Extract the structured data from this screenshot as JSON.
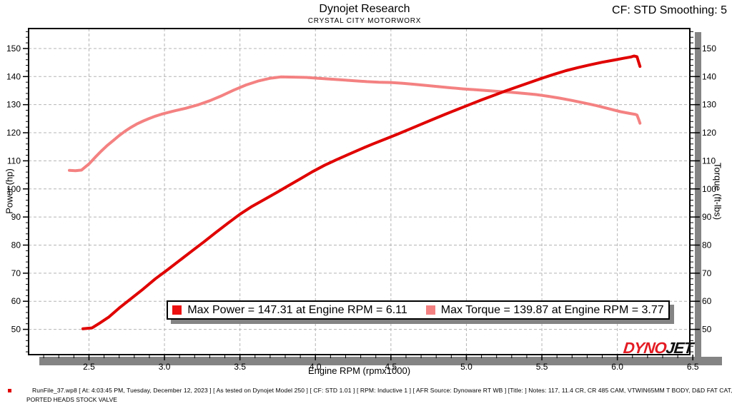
{
  "header": {
    "title": "Dynojet Research",
    "subtitle": "CRYSTAL CITY MOTORWORX",
    "smoothing_label": "CF: STD Smoothing: 5"
  },
  "footer": {
    "line1": "RunFile_37.wp8 [ At: 4:03:45 PM, Tuesday, December 12, 2023 ] [ As tested on Dynojet Model 250 ] [ CF: STD 1.01 ] [ RPM: Inductive 1 ] [ AFR Source: Dynoware RT WB ] [Title: ]   Notes: 117, 11.4 CR, CR 485 CAM, VTWIN65MM T BODY, D&D FAT CAT,",
    "line2": "PORTED HEADS STOCK VALVE"
  },
  "logo": {
    "text1": "DYNO",
    "text2": "JET",
    "color1": "#e31b23",
    "color2": "#111111"
  },
  "chart_data": {
    "type": "line",
    "title": "Dynojet Research",
    "subtitle": "CRYSTAL CITY MOTORWORX",
    "xlabel": "Engine RPM (rpmx1000)",
    "ylabel_left": "Power (hp)",
    "ylabel_right": "Torque (ft-lbs)",
    "xlim": [
      2.1,
      6.48
    ],
    "ylim": [
      41,
      157.1
    ],
    "x_ticks": [
      2.5,
      3.0,
      3.5,
      4.0,
      4.5,
      5.0,
      5.5,
      6.0,
      6.5
    ],
    "x_minor_step": 0.1,
    "y_ticks": [
      50,
      60,
      70,
      80,
      90,
      100,
      110,
      120,
      130,
      140,
      150
    ],
    "y_minor_step": 2,
    "grid": "dashed",
    "grid_color": "#b4b4b4",
    "frame_color": "#000000",
    "shadow_color": "#848484",
    "max_power": {
      "value": 147.31,
      "rpm": 6.11
    },
    "max_torque": {
      "value": 139.87,
      "rpm": 3.77
    },
    "legend": [
      {
        "label": "Max Power = 147.31 at Engine RPM = 6.11",
        "color": "#ee1111"
      },
      {
        "label": "Max Torque = 139.87 at Engine RPM = 3.77",
        "color": "#f48181"
      }
    ],
    "series": [
      {
        "name": "Torque",
        "unit": "ft-lbs",
        "color": "#f48181",
        "width": 4,
        "points": [
          [
            2.37,
            106.6
          ],
          [
            2.41,
            106.5
          ],
          [
            2.45,
            106.7
          ],
          [
            2.5,
            108.9
          ],
          [
            2.54,
            111.2
          ],
          [
            2.58,
            113.4
          ],
          [
            2.62,
            115.4
          ],
          [
            2.66,
            117.2
          ],
          [
            2.7,
            119.0
          ],
          [
            2.74,
            120.6
          ],
          [
            2.78,
            122.0
          ],
          [
            2.82,
            123.2
          ],
          [
            2.86,
            124.2
          ],
          [
            2.9,
            125.1
          ],
          [
            2.94,
            125.9
          ],
          [
            2.98,
            126.6
          ],
          [
            3.06,
            127.7
          ],
          [
            3.14,
            128.7
          ],
          [
            3.22,
            129.9
          ],
          [
            3.3,
            131.4
          ],
          [
            3.38,
            133.2
          ],
          [
            3.46,
            135.2
          ],
          [
            3.54,
            137.0
          ],
          [
            3.62,
            138.4
          ],
          [
            3.7,
            139.4
          ],
          [
            3.77,
            139.87
          ],
          [
            3.86,
            139.8
          ],
          [
            3.94,
            139.7
          ],
          [
            4.02,
            139.4
          ],
          [
            4.1,
            139.1
          ],
          [
            4.18,
            138.8
          ],
          [
            4.26,
            138.5
          ],
          [
            4.34,
            138.2
          ],
          [
            4.42,
            138.0
          ],
          [
            4.5,
            137.9
          ],
          [
            4.58,
            137.6
          ],
          [
            4.66,
            137.2
          ],
          [
            4.74,
            136.8
          ],
          [
            4.82,
            136.4
          ],
          [
            4.9,
            136.0
          ],
          [
            4.98,
            135.6
          ],
          [
            5.06,
            135.3
          ],
          [
            5.14,
            135.0
          ],
          [
            5.22,
            134.7
          ],
          [
            5.3,
            134.4
          ],
          [
            5.38,
            134.0
          ],
          [
            5.46,
            133.6
          ],
          [
            5.54,
            133.0
          ],
          [
            5.62,
            132.3
          ],
          [
            5.7,
            131.5
          ],
          [
            5.78,
            130.6
          ],
          [
            5.86,
            129.7
          ],
          [
            5.94,
            128.6
          ],
          [
            6.02,
            127.5
          ],
          [
            6.08,
            126.9
          ],
          [
            6.12,
            126.5
          ],
          [
            6.13,
            126.3
          ],
          [
            6.14,
            124.9
          ],
          [
            6.15,
            123.4
          ]
        ]
      },
      {
        "name": "Power",
        "unit": "hp",
        "color": "#e00000",
        "width": 4,
        "points": [
          [
            2.46,
            50.2
          ],
          [
            2.52,
            50.5
          ],
          [
            2.57,
            52.2
          ],
          [
            2.63,
            54.3
          ],
          [
            2.7,
            57.6
          ],
          [
            2.78,
            61.0
          ],
          [
            2.86,
            64.4
          ],
          [
            2.94,
            68.0
          ],
          [
            3.02,
            71.2
          ],
          [
            3.1,
            74.5
          ],
          [
            3.18,
            77.8
          ],
          [
            3.26,
            81.1
          ],
          [
            3.34,
            84.5
          ],
          [
            3.42,
            87.8
          ],
          [
            3.5,
            91.0
          ],
          [
            3.58,
            93.8
          ],
          [
            3.66,
            96.2
          ],
          [
            3.74,
            98.6
          ],
          [
            3.82,
            101.1
          ],
          [
            3.9,
            103.6
          ],
          [
            3.98,
            106.1
          ],
          [
            4.06,
            108.4
          ],
          [
            4.14,
            110.4
          ],
          [
            4.22,
            112.3
          ],
          [
            4.3,
            114.2
          ],
          [
            4.38,
            116.0
          ],
          [
            4.46,
            117.7
          ],
          [
            4.54,
            119.4
          ],
          [
            4.62,
            121.2
          ],
          [
            4.7,
            123.0
          ],
          [
            4.78,
            124.8
          ],
          [
            4.86,
            126.6
          ],
          [
            4.94,
            128.3
          ],
          [
            5.02,
            130.0
          ],
          [
            5.1,
            131.7
          ],
          [
            5.18,
            133.3
          ],
          [
            5.26,
            134.9
          ],
          [
            5.34,
            136.4
          ],
          [
            5.42,
            137.9
          ],
          [
            5.5,
            139.4
          ],
          [
            5.58,
            140.8
          ],
          [
            5.66,
            142.1
          ],
          [
            5.74,
            143.2
          ],
          [
            5.82,
            144.2
          ],
          [
            5.9,
            145.1
          ],
          [
            5.98,
            145.9
          ],
          [
            6.04,
            146.5
          ],
          [
            6.09,
            147.0
          ],
          [
            6.11,
            147.31
          ],
          [
            6.13,
            147.1
          ],
          [
            6.14,
            145.3
          ],
          [
            6.15,
            143.6
          ]
        ]
      }
    ]
  }
}
